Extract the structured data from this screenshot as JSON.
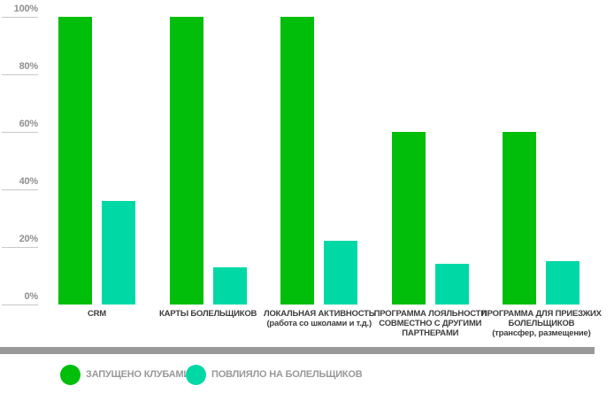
{
  "chart_data": {
    "type": "bar",
    "title": "",
    "xlabel": "",
    "ylabel": "",
    "ylim": [
      0,
      100
    ],
    "grid": "left-ticks-only",
    "legend_position": "bottom",
    "y_ticks": [
      {
        "value": 100,
        "label": "100%"
      },
      {
        "value": 80,
        "label": "80%"
      },
      {
        "value": 60,
        "label": "60%"
      },
      {
        "value": 40,
        "label": "40%"
      },
      {
        "value": 20,
        "label": "20%"
      },
      {
        "value": 0,
        "label": "0%"
      }
    ],
    "categories": [
      {
        "id": "crm",
        "lines": [
          "CRM"
        ]
      },
      {
        "id": "fan-cards",
        "lines": [
          "КАРТЫ БОЛЕЛЬЩИКОВ"
        ]
      },
      {
        "id": "local-activity",
        "lines": [
          "ЛОКАЛЬНАЯ АКТИВНОСТЬ",
          "(работа со школами и т.д.)"
        ]
      },
      {
        "id": "loyalty-program",
        "lines": [
          "ПРОГРАММА ЛОЯЛЬНОСТИ",
          "СОВМЕСТНО С ДРУГИМИ",
          "ПАРТНЕРАМИ"
        ]
      },
      {
        "id": "visiting-fans-program",
        "lines": [
          "ПРОГРАММА ДЛЯ ПРИЕЗЖИХ",
          "БОЛЕЛЬЩИКОВ",
          "(трансфер, размещение)"
        ]
      }
    ],
    "series": [
      {
        "name": "ЗАПУЩЕНО КЛУБАМИ",
        "color": "#00be0a",
        "values": [
          100,
          100,
          100,
          60,
          60
        ]
      },
      {
        "name": "ПОВЛИЯЛО НА БОЛЕЛЬЩИКОВ",
        "color": "#00d9a6",
        "values": [
          36,
          13,
          22,
          14,
          15
        ]
      }
    ]
  },
  "colors": {
    "background": "#ffffff",
    "tick_label": "#8f8f8f",
    "tick_line": "#c9c9c9",
    "category_label": "#3d3d3d",
    "separator": "#999999",
    "legend_text": "#999999"
  }
}
